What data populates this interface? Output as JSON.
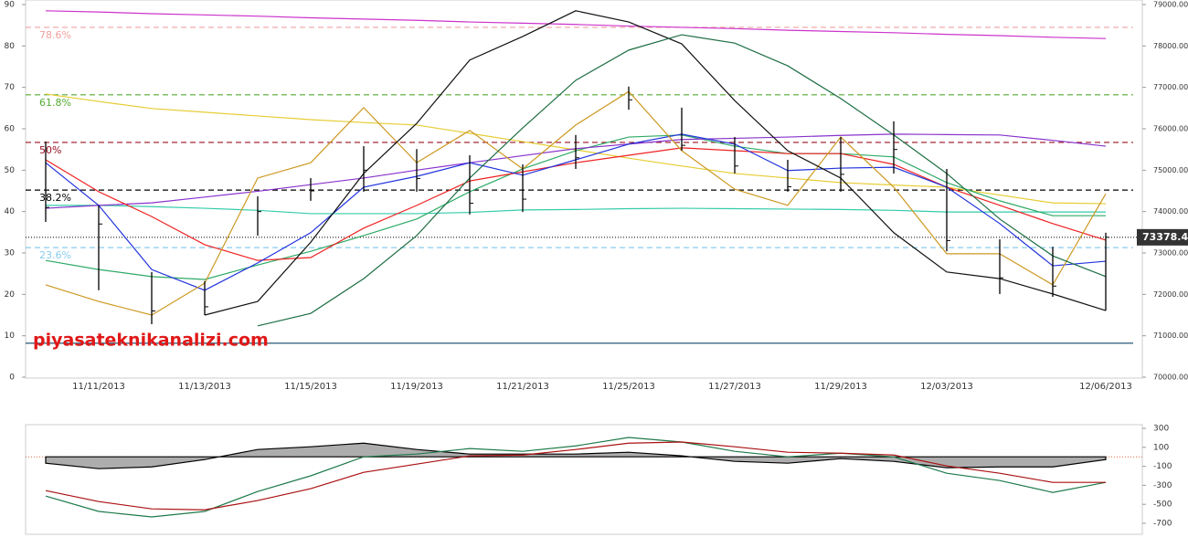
{
  "chart_data": [
    {
      "type": "stock",
      "watermark": "piyasateknikanalizi.com",
      "categories": [
        null,
        "11/11/2013",
        null,
        "11/13/2013",
        null,
        "11/15/2013",
        null,
        "11/19/2013",
        null,
        "11/21/2013",
        null,
        "11/25/2013",
        null,
        "11/27/2013",
        null,
        "11/29/2013",
        null,
        "12/03/2013",
        null,
        null,
        "12/06/2013"
      ],
      "ylim": [
        0,
        90
      ],
      "yticks": [
        0,
        10,
        20,
        30,
        40,
        50,
        60,
        70,
        80,
        90
      ],
      "y2lim": [
        70000,
        79000
      ],
      "y2ticks": [
        {
          "value": 70000,
          "label": "70000.00"
        },
        {
          "value": 71000,
          "label": "71000.00"
        },
        {
          "value": 72000,
          "label": "72000.00"
        },
        {
          "value": 73000,
          "label": "73000.00"
        },
        {
          "value": 74000,
          "label": "74000.00"
        },
        {
          "value": 75000,
          "label": "75000.00"
        },
        {
          "value": 76000,
          "label": "76000.00"
        },
        {
          "value": 77000,
          "label": "77000.00"
        },
        {
          "value": 78000,
          "label": "78000.00"
        },
        {
          "value": 79000,
          "label": "79000.00"
        }
      ],
      "series": [
        {
          "color": "#cc33cc",
          "values": [
            88.5,
            88.2,
            87.8,
            87.5,
            87.2,
            86.8,
            86.5,
            86.2,
            85.8,
            85.5,
            85.2,
            84.8,
            84.5,
            84.2,
            83.8,
            83.5,
            83.2,
            82.8,
            82.5,
            82.1,
            81.8
          ]
        },
        {
          "color": "#e6cc33",
          "values": [
            68.4,
            66.6,
            64.9,
            64.0,
            63.1,
            62.2,
            61.5,
            60.9,
            58.9,
            56.9,
            54.9,
            52.9,
            51.0,
            49.2,
            48.1,
            47.0,
            46.4,
            45.9,
            44.0,
            42.1,
            41.9
          ]
        },
        {
          "color": "#33ccaa",
          "values": [
            41.5,
            41.5,
            41.2,
            40.8,
            40.3,
            39.5,
            39.5,
            39.5,
            39.8,
            40.4,
            40.5,
            40.7,
            40.8,
            40.7,
            40.6,
            40.5,
            40.3,
            39.9,
            39.9,
            39.9,
            39.9
          ]
        },
        {
          "color": "#2eaa66",
          "values": [
            28.2,
            26,
            24.3,
            23.6,
            27.1,
            30.4,
            34.2,
            38.2,
            44.8,
            50.3,
            54.7,
            58,
            58.5,
            55.8,
            54,
            54,
            53.2,
            47,
            42.6,
            39,
            39
          ]
        },
        {
          "color": "#8833cc",
          "values": [
            40.8,
            41.5,
            42.1,
            43.5,
            44.9,
            46.5,
            48.1,
            50.0,
            51.8,
            53.5,
            55.2,
            56.3,
            57.4,
            57.7,
            58.0,
            58.4,
            58.7,
            58.6,
            58.5,
            57.2,
            55.8
          ]
        },
        {
          "color": "#ee2222",
          "values": [
            52.5,
            44.8,
            38.8,
            32,
            28.2,
            28.9,
            36,
            41.5,
            47.4,
            49.6,
            51.8,
            53.6,
            55.4,
            54.7,
            54,
            54,
            51.4,
            45.9,
            41.5,
            37.1,
            33.1
          ]
        },
        {
          "color": "#2233dd",
          "values": [
            51.8,
            41.5,
            26,
            21,
            27.6,
            34.9,
            45.9,
            48.5,
            51.8,
            48.8,
            52.5,
            56.3,
            58.7,
            56.3,
            49.9,
            50.5,
            50.7,
            45.9,
            37.1,
            26.9,
            28
          ]
        },
        {
          "color": "#cc9922",
          "values": [
            22.3,
            18.3,
            15,
            22.7,
            48.1,
            51.8,
            65.1,
            51.8,
            59.6,
            50.3,
            60.9,
            69,
            54.7,
            45.4,
            41.5,
            58,
            45.9,
            29.8,
            29.8,
            22.3,
            44.3
          ]
        },
        {
          "color": "#111111",
          "values": [
            null,
            null,
            null,
            15,
            18.3,
            32.6,
            49.2,
            61.3,
            76.6,
            82.3,
            88.5,
            85.8,
            80.5,
            66.8,
            54.7,
            48.1,
            34.9,
            25.4,
            23.8,
            20.1,
            16.1
          ]
        },
        {
          "color": "#1e6e44",
          "values": [
            null,
            null,
            null,
            null,
            12.4,
            15.4,
            23.8,
            34.2,
            48.1,
            60.2,
            71.7,
            79,
            82.7,
            80.7,
            75.2,
            67.3,
            58.5,
            49.2,
            38.2,
            29.3,
            24.3
          ]
        }
      ],
      "ohlc": {
        "color": "#000000",
        "high": [
          75690,
          74150,
          72540,
          72320,
          74370,
          74810,
          75580,
          75510,
          75360,
          75140,
          75850,
          77020,
          76510,
          75800,
          75250,
          75800,
          76180,
          75030,
          73330,
          73150,
          73490
        ],
        "low": [
          73750,
          72100,
          71280,
          71500,
          73420,
          74260,
          74480,
          74480,
          73930,
          73990,
          75030,
          76460,
          75470,
          74920,
          74480,
          74480,
          74920,
          73040,
          72010,
          71940,
          71610
        ],
        "close": [
          74100,
          73700,
          71600,
          71700,
          74000,
          74500,
          75000,
          74800,
          74200,
          74300,
          75300,
          76700,
          75600,
          75100,
          74600,
          74900,
          75500,
          73300,
          72400,
          72200,
          73378.4
        ]
      },
      "levels": [
        {
          "label": "78.6%",
          "value": 78450,
          "color": "#f0a0a0",
          "style": "dashed"
        },
        {
          "label": "61.8%",
          "value": 76820,
          "color": "#55aa33",
          "style": "dashed"
        },
        {
          "label": "50%",
          "value": 75670,
          "color": "#991122",
          "style": "dashed"
        },
        {
          "label": "38.2%",
          "value": 74520,
          "color": "#000000",
          "style": "dashed"
        },
        {
          "label": "23.6%",
          "value": 73130,
          "color": "#88ccee",
          "style": "dashed"
        },
        {
          "value": 70820,
          "color": "#114466",
          "style": "solid"
        }
      ],
      "last_price": 73378.4
    },
    {
      "type": "macd",
      "ylim": [
        -700,
        300
      ],
      "yticks": [
        -700,
        -500,
        -300,
        -100,
        100,
        300
      ],
      "series": [
        {
          "color": "#999999",
          "style": "area",
          "values": [
            -67,
            -125,
            -106,
            -29,
            77,
            106,
            144,
            77,
            29,
            29,
            29,
            48,
            10,
            -48,
            -67,
            -19,
            -48,
            -115,
            -106,
            -106,
            -29
          ]
        },
        {
          "color": "#1e7a4a",
          "style": "line",
          "values": [
            -413,
            -575,
            -633,
            -575,
            -365,
            -200,
            0,
            29,
            87,
            58,
            115,
            204,
            156,
            58,
            0,
            38,
            0,
            -173,
            -250,
            -375,
            -269
          ]
        },
        {
          "color": "#aa1111",
          "style": "line",
          "values": [
            -356,
            -471,
            -548,
            -558,
            -460,
            -335,
            -163,
            -77,
            10,
            19,
            77,
            144,
            156,
            106,
            48,
            38,
            19,
            -96,
            -173,
            -269,
            -269
          ]
        }
      ]
    }
  ]
}
